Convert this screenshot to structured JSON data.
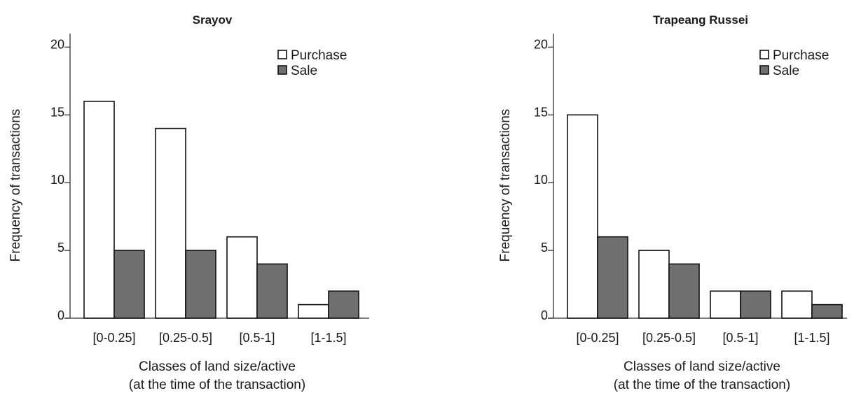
{
  "colors": {
    "purchase": "#ffffff",
    "sale": "#707070",
    "stroke": "#111111"
  },
  "chart_data": [
    {
      "type": "bar",
      "title": "Srayov",
      "xlabel": [
        "Classes of land size/active",
        "(at the time of the transaction)"
      ],
      "ylabel": "Frequency of transactions",
      "categories": [
        "[0-0.25]",
        "[0.25-0.5]",
        "[0.5-1]",
        "[1-1.5]"
      ],
      "series": [
        {
          "name": "Purchase",
          "values": [
            16,
            14,
            6,
            1
          ]
        },
        {
          "name": "Sale",
          "values": [
            5,
            5,
            4,
            2
          ]
        }
      ],
      "ylim": [
        0,
        21
      ],
      "yticks": [
        0,
        5,
        10,
        15,
        20
      ],
      "ytick_labels": [
        "0",
        "5",
        "10",
        "15",
        "20"
      ],
      "legend": "top-right",
      "grid": false
    },
    {
      "type": "bar",
      "title": "Trapeang Russei",
      "xlabel": [
        "Classes of land size/active",
        "(at the time of the transaction)"
      ],
      "ylabel": "Frequency of transactions",
      "categories": [
        "[0-0.25]",
        "[0.25-0.5]",
        "[0.5-1]",
        "[1-1.5]"
      ],
      "series": [
        {
          "name": "Purchase",
          "values": [
            15,
            5,
            2,
            2
          ]
        },
        {
          "name": "Sale",
          "values": [
            6,
            4,
            2,
            1
          ]
        }
      ],
      "ylim": [
        0,
        21
      ],
      "yticks": [
        0,
        5,
        10,
        15,
        20
      ],
      "ytick_labels": [
        "0",
        "5",
        "10",
        "15",
        "20"
      ],
      "legend": "top-right",
      "grid": false
    }
  ]
}
